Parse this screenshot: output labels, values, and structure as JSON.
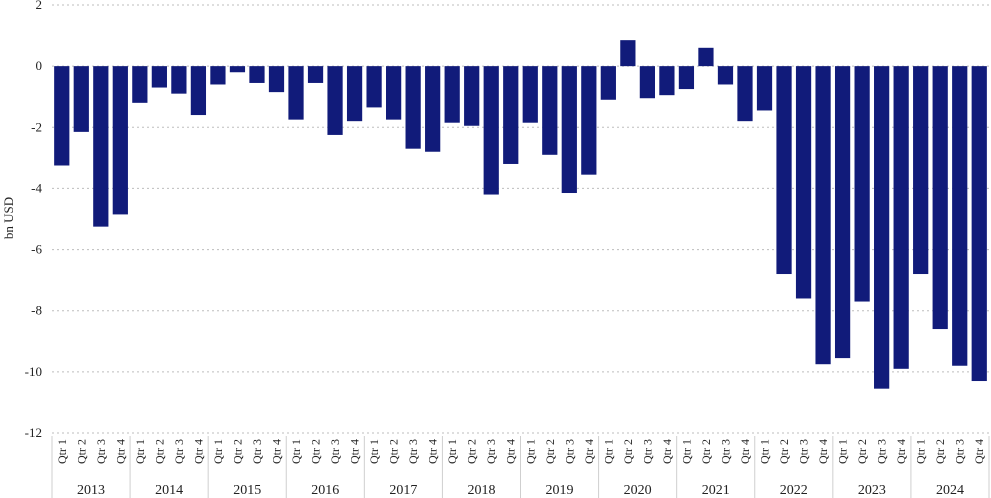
{
  "chart_data": {
    "type": "bar",
    "ylabel": "bn USD",
    "ylim": [
      -12,
      2
    ],
    "yticks": [
      2,
      0,
      -2,
      -4,
      -6,
      -8,
      -10,
      -12
    ],
    "grid": true,
    "bar_color": "#111b7a",
    "years": [
      "2013",
      "2014",
      "2015",
      "2016",
      "2017",
      "2018",
      "2019",
      "2020",
      "2021",
      "2022",
      "2023",
      "2024"
    ],
    "quarters": [
      "Qtr 1",
      "Qtr 2",
      "Qtr 3",
      "Qtr 4"
    ],
    "categories": [
      "2013 Qtr 1",
      "2013 Qtr 2",
      "2013 Qtr 3",
      "2013 Qtr 4",
      "2014 Qtr 1",
      "2014 Qtr 2",
      "2014 Qtr 3",
      "2014 Qtr 4",
      "2015 Qtr 1",
      "2015 Qtr 2",
      "2015 Qtr 3",
      "2015 Qtr 4",
      "2016 Qtr 1",
      "2016 Qtr 2",
      "2016 Qtr 3",
      "2016 Qtr 4",
      "2017 Qtr 1",
      "2017 Qtr 2",
      "2017 Qtr 3",
      "2017 Qtr 4",
      "2018 Qtr 1",
      "2018 Qtr 2",
      "2018 Qtr 3",
      "2018 Qtr 4",
      "2019 Qtr 1",
      "2019 Qtr 2",
      "2019 Qtr 3",
      "2019 Qtr 4",
      "2020 Qtr 1",
      "2020 Qtr 2",
      "2020 Qtr 3",
      "2020 Qtr 4",
      "2021 Qtr 1",
      "2021 Qtr 2",
      "2021 Qtr 3",
      "2021 Qtr 4",
      "2022 Qtr 1",
      "2022 Qtr 2",
      "2022 Qtr 3",
      "2022 Qtr 4",
      "2023 Qtr 1",
      "2023 Qtr 2",
      "2023 Qtr 3",
      "2023 Qtr 4",
      "2024 Qtr 1",
      "2024 Qtr 2",
      "2024 Qtr 3",
      "2024 Qtr 4"
    ],
    "values": [
      -3.25,
      -2.15,
      -5.25,
      -4.85,
      -1.2,
      -0.7,
      -0.9,
      -1.6,
      -0.6,
      -0.2,
      -0.55,
      -0.85,
      -1.75,
      -0.55,
      -2.25,
      -1.8,
      -1.35,
      -1.75,
      -2.7,
      -2.8,
      -1.85,
      -1.95,
      -4.2,
      -3.2,
      -1.85,
      -2.9,
      -4.15,
      -3.55,
      -1.1,
      0.85,
      -1.05,
      -0.95,
      -0.75,
      0.6,
      -0.6,
      -1.8,
      -1.45,
      -6.8,
      -7.6,
      -9.75,
      -9.55,
      -7.7,
      -10.55,
      -9.9,
      -6.8,
      -8.6,
      -9.8,
      -10.3
    ]
  }
}
